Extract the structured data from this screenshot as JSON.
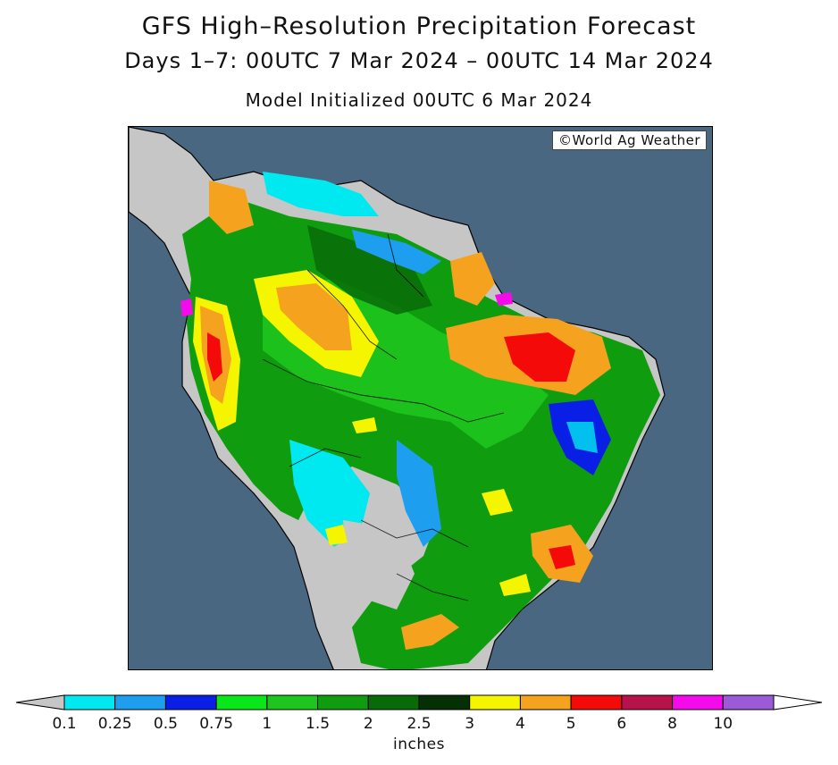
{
  "title": "GFS High–Resolution Precipitation Forecast",
  "subtitle": "Days 1–7: 00UTC 7 Mar 2024 – 00UTC 14 Mar 2024",
  "init_line": "Model Initialized 00UTC 6 Mar 2024",
  "copyright": "©World Ag Weather",
  "map": {
    "region": "South America",
    "ocean_color": "#4a6782",
    "no_data_color": "#c6c6c6"
  },
  "legend": {
    "units": "inches",
    "ticks": [
      "0.1",
      "0.25",
      "0.5",
      "0.75",
      "1",
      "1.5",
      "2",
      "2.5",
      "3",
      "4",
      "5",
      "6",
      "8",
      "10"
    ],
    "low_color": "#c6c6c6",
    "colors": [
      "#00e8f0",
      "#1e9eef",
      "#0a1fe6",
      "#08e71a",
      "#1ec51e",
      "#0f9c0f",
      "#086b08",
      "#052f05",
      "#f5f500",
      "#f5a21e",
      "#f50a0a",
      "#b8124a",
      "#f50aeb",
      "#9c5ad8"
    ],
    "high_color": "#ffffff"
  }
}
